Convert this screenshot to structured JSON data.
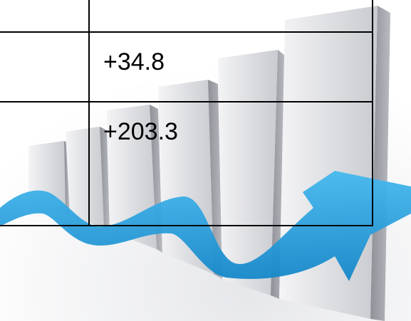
{
  "cells": [
    "+34.8",
    "+203.3"
  ]
}
